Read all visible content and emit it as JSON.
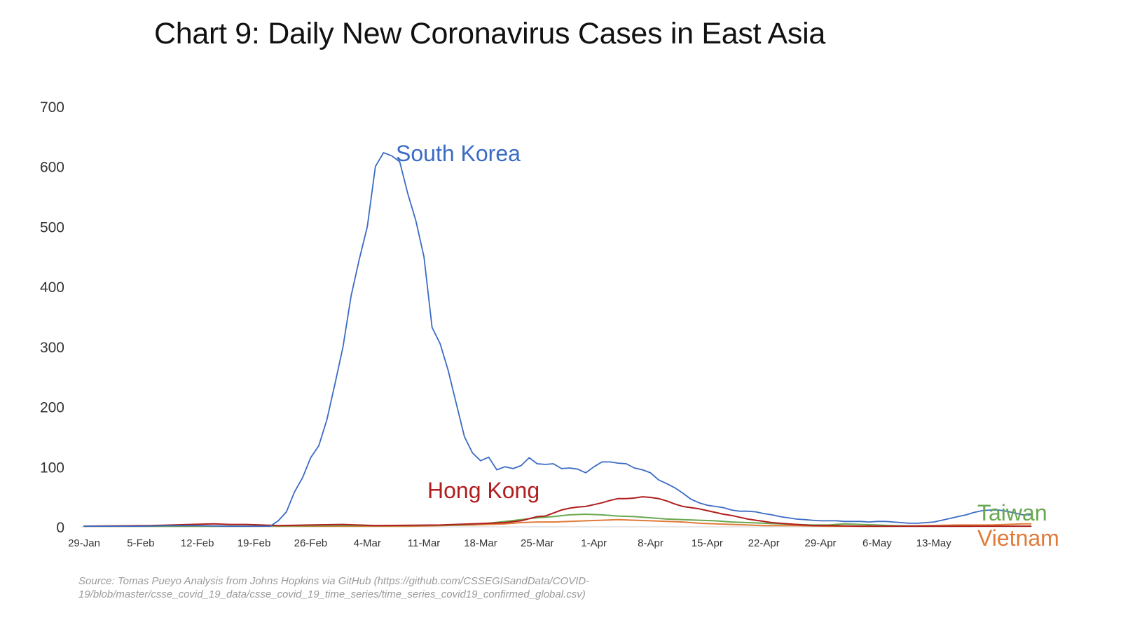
{
  "chart_data": {
    "type": "line",
    "title": "Chart 9: Daily New Coronavirus Cases in East Asia",
    "xlabel": "",
    "ylabel": "",
    "ylim": [
      0,
      700
    ],
    "y_ticks": [
      0,
      100,
      200,
      300,
      400,
      500,
      600,
      700
    ],
    "x_ticks": [
      "29-Jan",
      "5-Feb",
      "12-Feb",
      "19-Feb",
      "26-Feb",
      "4-Mar",
      "11-Mar",
      "18-Mar",
      "25-Mar",
      "1-Apr",
      "8-Apr",
      "15-Apr",
      "22-Apr",
      "29-Apr",
      "6-May",
      "13-May"
    ],
    "x_start": "29-Jan",
    "grid": false,
    "legend": "direct labels",
    "series": [
      {
        "name": "South Korea",
        "color": "#3b6bc4",
        "points": [
          [
            0,
            1
          ],
          [
            3,
            1
          ],
          [
            7,
            1
          ],
          [
            10,
            2
          ],
          [
            14,
            2
          ],
          [
            18,
            1
          ],
          [
            21,
            1
          ],
          [
            23,
            1
          ],
          [
            24,
            10
          ],
          [
            25,
            25
          ],
          [
            26,
            58
          ],
          [
            27,
            82
          ],
          [
            28,
            115
          ],
          [
            29,
            135
          ],
          [
            30,
            178
          ],
          [
            31,
            238
          ],
          [
            32,
            300
          ],
          [
            33,
            385
          ],
          [
            34,
            445
          ],
          [
            35,
            500
          ],
          [
            36,
            600
          ],
          [
            37,
            623
          ],
          [
            38,
            618
          ],
          [
            39,
            608
          ],
          [
            40,
            555
          ],
          [
            41,
            510
          ],
          [
            42,
            450
          ],
          [
            43,
            332
          ],
          [
            44,
            305
          ],
          [
            45,
            260
          ],
          [
            46,
            205
          ],
          [
            47,
            150
          ],
          [
            48,
            123
          ],
          [
            49,
            110
          ],
          [
            50,
            116
          ],
          [
            51,
            95
          ],
          [
            52,
            100
          ],
          [
            53,
            97
          ],
          [
            54,
            102
          ],
          [
            55,
            115
          ],
          [
            56,
            105
          ],
          [
            57,
            104
          ],
          [
            58,
            105
          ],
          [
            59,
            97
          ],
          [
            60,
            98
          ],
          [
            61,
            96
          ],
          [
            62,
            90
          ],
          [
            63,
            100
          ],
          [
            64,
            108
          ],
          [
            65,
            108
          ],
          [
            66,
            106
          ],
          [
            67,
            105
          ],
          [
            68,
            98
          ],
          [
            69,
            95
          ],
          [
            70,
            90
          ],
          [
            71,
            78
          ],
          [
            72,
            72
          ],
          [
            73,
            65
          ],
          [
            74,
            56
          ],
          [
            75,
            46
          ],
          [
            76,
            40
          ],
          [
            77,
            36
          ],
          [
            78,
            34
          ],
          [
            79,
            32
          ],
          [
            80,
            28
          ],
          [
            81,
            26
          ],
          [
            82,
            26
          ],
          [
            83,
            25
          ],
          [
            84,
            22
          ],
          [
            85,
            20
          ],
          [
            86,
            17
          ],
          [
            87,
            15
          ],
          [
            88,
            13
          ],
          [
            89,
            12
          ],
          [
            90,
            11
          ],
          [
            91,
            10
          ],
          [
            92,
            10
          ],
          [
            93,
            10
          ],
          [
            94,
            9
          ],
          [
            95,
            9
          ],
          [
            96,
            9
          ],
          [
            97,
            8
          ],
          [
            98,
            9
          ],
          [
            99,
            9
          ],
          [
            100,
            8
          ],
          [
            101,
            7
          ],
          [
            102,
            6
          ],
          [
            103,
            6
          ],
          [
            104,
            7
          ],
          [
            105,
            8
          ],
          [
            106,
            11
          ],
          [
            107,
            14
          ],
          [
            108,
            17
          ],
          [
            109,
            20
          ],
          [
            110,
            24
          ],
          [
            111,
            27
          ],
          [
            112,
            28
          ],
          [
            113,
            28
          ],
          [
            114,
            26
          ],
          [
            115,
            23
          ],
          [
            116,
            20
          ],
          [
            117,
            20
          ]
        ]
      },
      {
        "name": "Hong Kong",
        "color": "#b01e1e",
        "points": [
          [
            0,
            1
          ],
          [
            8,
            2
          ],
          [
            16,
            5
          ],
          [
            18,
            4
          ],
          [
            20,
            4
          ],
          [
            22,
            3
          ],
          [
            24,
            2
          ],
          [
            28,
            3
          ],
          [
            32,
            4
          ],
          [
            36,
            2
          ],
          [
            44,
            3
          ],
          [
            48,
            5
          ],
          [
            52,
            7
          ],
          [
            54,
            10
          ],
          [
            56,
            17
          ],
          [
            57,
            18
          ],
          [
            58,
            23
          ],
          [
            59,
            28
          ],
          [
            60,
            31
          ],
          [
            61,
            33
          ],
          [
            62,
            34
          ],
          [
            63,
            37
          ],
          [
            64,
            40
          ],
          [
            65,
            44
          ],
          [
            66,
            47
          ],
          [
            67,
            47
          ],
          [
            68,
            48
          ],
          [
            69,
            50
          ],
          [
            70,
            49
          ],
          [
            71,
            47
          ],
          [
            72,
            43
          ],
          [
            73,
            38
          ],
          [
            74,
            34
          ],
          [
            75,
            32
          ],
          [
            76,
            30
          ],
          [
            77,
            27
          ],
          [
            78,
            24
          ],
          [
            79,
            21
          ],
          [
            80,
            19
          ],
          [
            81,
            16
          ],
          [
            82,
            13
          ],
          [
            83,
            11
          ],
          [
            84,
            9
          ],
          [
            85,
            7
          ],
          [
            86,
            6
          ],
          [
            87,
            5
          ],
          [
            88,
            4
          ],
          [
            89,
            3
          ],
          [
            90,
            2
          ],
          [
            92,
            2
          ],
          [
            96,
            1
          ],
          [
            104,
            1
          ],
          [
            117,
            1
          ]
        ]
      },
      {
        "name": "Taiwan",
        "color": "#6aa84f",
        "points": [
          [
            0,
            1
          ],
          [
            10,
            1
          ],
          [
            20,
            1
          ],
          [
            30,
            2
          ],
          [
            40,
            2
          ],
          [
            46,
            3
          ],
          [
            50,
            6
          ],
          [
            54,
            12
          ],
          [
            56,
            15
          ],
          [
            58,
            17
          ],
          [
            60,
            20
          ],
          [
            62,
            21
          ],
          [
            64,
            20
          ],
          [
            66,
            18
          ],
          [
            68,
            17
          ],
          [
            70,
            15
          ],
          [
            72,
            13
          ],
          [
            74,
            12
          ],
          [
            76,
            11
          ],
          [
            78,
            10
          ],
          [
            80,
            8
          ],
          [
            82,
            7
          ],
          [
            84,
            6
          ],
          [
            86,
            5
          ],
          [
            88,
            4
          ],
          [
            90,
            3
          ],
          [
            92,
            3
          ],
          [
            94,
            5
          ],
          [
            96,
            4
          ],
          [
            98,
            3
          ],
          [
            100,
            2
          ],
          [
            104,
            1
          ],
          [
            110,
            1
          ],
          [
            117,
            1
          ]
        ]
      },
      {
        "name": "Vietnam",
        "color": "#e07b39",
        "points": [
          [
            0,
            1
          ],
          [
            20,
            1
          ],
          [
            40,
            1
          ],
          [
            48,
            3
          ],
          [
            52,
            5
          ],
          [
            54,
            7
          ],
          [
            56,
            8
          ],
          [
            58,
            8
          ],
          [
            60,
            9
          ],
          [
            62,
            10
          ],
          [
            64,
            11
          ],
          [
            66,
            12
          ],
          [
            68,
            11
          ],
          [
            70,
            10
          ],
          [
            72,
            9
          ],
          [
            74,
            8
          ],
          [
            76,
            6
          ],
          [
            78,
            5
          ],
          [
            80,
            4
          ],
          [
            82,
            3
          ],
          [
            84,
            2
          ],
          [
            88,
            2
          ],
          [
            92,
            1
          ],
          [
            100,
            1
          ],
          [
            104,
            2
          ],
          [
            108,
            3
          ],
          [
            112,
            3
          ],
          [
            114,
            4
          ],
          [
            116,
            5
          ],
          [
            117,
            5
          ]
        ]
      }
    ],
    "annotations": [
      {
        "text": "South Korea",
        "series": "South Korea"
      },
      {
        "text": "Hong Kong",
        "series": "Hong Kong"
      },
      {
        "text": "Taiwan",
        "series": "Taiwan"
      },
      {
        "text": "Vietnam",
        "series": "Vietnam"
      }
    ]
  },
  "source": "Source: Tomas Pueyo Analysis from Johns Hopkins via GitHub (https://github.com/CSSEGISandData/COVID-19/blob/master/csse_covid_19_data/csse_covid_19_time_series/time_series_covid19_confirmed_global.csv)"
}
